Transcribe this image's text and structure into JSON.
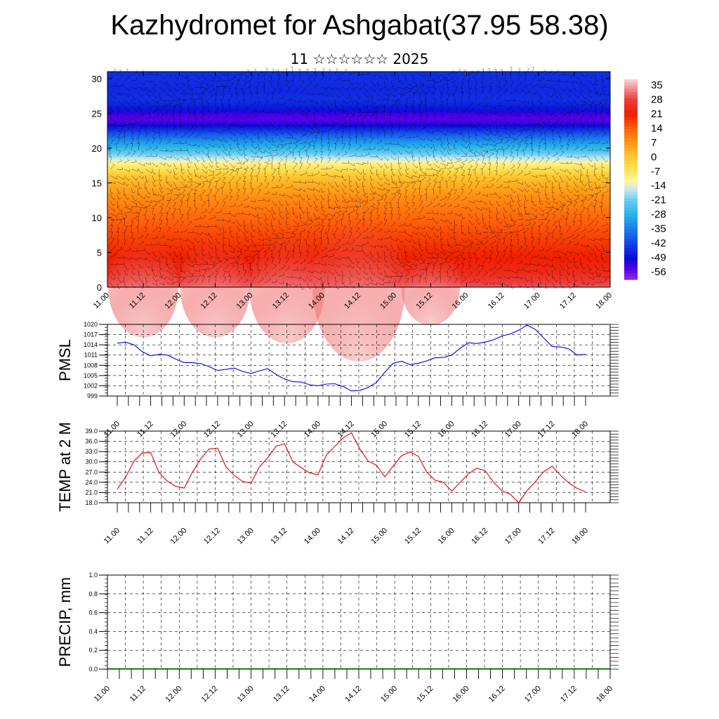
{
  "page": {
    "title": "Kazhydromet for Ashgabat(37.95 58.38)",
    "subtitle": "11 ☆☆☆☆☆☆ 2025"
  },
  "chart_data": [
    {
      "type": "heatmap",
      "title": "",
      "xlabel": "",
      "ylabel": "",
      "x_ticks": [
        "11.00",
        "11.12",
        "12.00",
        "12.12",
        "13.00",
        "13.12",
        "14.00",
        "14.12",
        "15.00",
        "15.12",
        "16.00",
        "16.12",
        "17.00",
        "17.12",
        "18.00"
      ],
      "y_ticks": [
        0,
        5,
        10,
        15,
        20,
        25,
        30
      ],
      "ylim": [
        0,
        31
      ],
      "colorbar_labels": [
        35,
        28,
        21,
        14,
        7,
        0,
        -7,
        -14,
        -21,
        -28,
        -35,
        -42,
        -49,
        -56
      ],
      "colorbar_range": [
        -60,
        38
      ],
      "overlay": "wind barbs",
      "temperature_profile": {
        "levels": [
          0,
          2,
          5,
          8,
          10,
          13,
          15,
          16,
          17,
          18,
          19,
          20,
          21,
          22,
          23,
          24,
          25,
          26,
          27,
          28,
          31
        ],
        "values": [
          30,
          24,
          20,
          16,
          13,
          8,
          3,
          0,
          -6,
          -12,
          -20,
          -27,
          -33,
          -40,
          -48,
          -56,
          -53,
          -47,
          -45,
          -46,
          -45
        ]
      },
      "warm_cores": [
        {
          "x": "11.12",
          "peak": 34
        },
        {
          "x": "12.12",
          "peak": 34
        },
        {
          "x": "13.12",
          "peak": 35
        },
        {
          "x": "14.12",
          "peak": 38
        },
        {
          "x": "15.12",
          "peak": 32
        }
      ]
    },
    {
      "type": "line",
      "ylabel": "PMSL",
      "x_ticks": [
        "11.00",
        "11.12",
        "12.00",
        "12.12",
        "13.00",
        "13.12",
        "14.00",
        "14.12",
        "15.00",
        "15.12",
        "16.00",
        "16.12",
        "17.00",
        "17.12",
        "18.00"
      ],
      "y_ticks": [
        "1020",
        "1017",
        "1014",
        "1011",
        "1008",
        "1005",
        "1002",
        "999"
      ],
      "ylim": [
        999,
        1020
      ],
      "x_range": [
        0,
        45
      ],
      "grid": true,
      "series": [
        {
          "color": "#0000e6",
          "values": [
            1014.5,
            1014.8,
            1014,
            1012,
            1010.8,
            1011.2,
            1011,
            1009.8,
            1008.8,
            1008.8,
            1008.5,
            1007.6,
            1006.5,
            1006.8,
            1007.2,
            1006.2,
            1005.6,
            1006.4,
            1007,
            1005.3,
            1004,
            1003.2,
            1003.1,
            1002.3,
            1002,
            1002.5,
            1002.6,
            1001.8,
            1000.5,
            1000.6,
            1001.5,
            1003,
            1006,
            1008.6,
            1009.2,
            1008.2,
            1008.6,
            1009.3,
            1010.2,
            1010.3,
            1011,
            1013,
            1014.6,
            1014.4,
            1014.8,
            1015.5,
            1016.6,
            1017.2,
            1018.3,
            1019.8,
            1018.5,
            1016,
            1013.5,
            1013.4,
            1012.8,
            1011,
            1011.2
          ]
        }
      ]
    },
    {
      "type": "line",
      "ylabel": "TEMP at 2 M",
      "x_ticks": [
        "11.00",
        "11.12",
        "12.00",
        "12.12",
        "13.00",
        "13.12",
        "14.00",
        "14.12",
        "15.00",
        "15.12",
        "16.00",
        "16.12",
        "17.00",
        "17.12",
        "18.00"
      ],
      "y_ticks": [
        "39.0",
        "36.0",
        "33.0",
        "30.0",
        "27.0",
        "24.0",
        "21.0",
        "18.0"
      ],
      "ylim": [
        18,
        39
      ],
      "x_range": [
        0,
        45
      ],
      "grid": true,
      "series": [
        {
          "color": "#e60000",
          "values": [
            22,
            25.5,
            30.2,
            32.6,
            32.7,
            26.8,
            24.3,
            22.8,
            22.3,
            27,
            31,
            33.8,
            34,
            28.5,
            26,
            24.2,
            23.8,
            28.5,
            31.2,
            34.6,
            35.3,
            30,
            28.3,
            26.8,
            26.2,
            32,
            34.5,
            37,
            38.5,
            33.8,
            30.2,
            29,
            25.6,
            28.8,
            31.8,
            32.9,
            31.6,
            27,
            24.6,
            24,
            21.4,
            24,
            26.5,
            28.1,
            27.4,
            24,
            21.5,
            20.5,
            18,
            21.5,
            24.2,
            27.1,
            28.7,
            26,
            23.8,
            22.2,
            21.2
          ]
        }
      ]
    },
    {
      "type": "bar",
      "ylabel": "PRECIP, mm",
      "x_ticks": [
        "11.00",
        "11.12",
        "12.00",
        "12.12",
        "13.00",
        "13.12",
        "14.00",
        "14.12",
        "15.00",
        "15.12",
        "16.00",
        "16.12",
        "17.00",
        "17.12",
        "18.00"
      ],
      "y_ticks": [
        "1.0",
        "0.8",
        "0.6",
        "0.4",
        "0.2",
        "0.0"
      ],
      "ylim": [
        0,
        1
      ],
      "x_range": [
        0,
        56
      ],
      "grid": true,
      "series": [
        {
          "color": "#006400",
          "values": [
            0,
            0,
            0,
            0,
            0,
            0,
            0,
            0,
            0,
            0,
            0,
            0,
            0,
            0,
            0,
            0,
            0,
            0,
            0,
            0,
            0,
            0,
            0,
            0,
            0,
            0,
            0,
            0,
            0,
            0,
            0,
            0,
            0,
            0,
            0,
            0,
            0,
            0,
            0,
            0,
            0,
            0,
            0,
            0,
            0,
            0,
            0,
            0,
            0,
            0,
            0,
            0,
            0,
            0,
            0,
            0,
            0
          ]
        }
      ]
    }
  ]
}
